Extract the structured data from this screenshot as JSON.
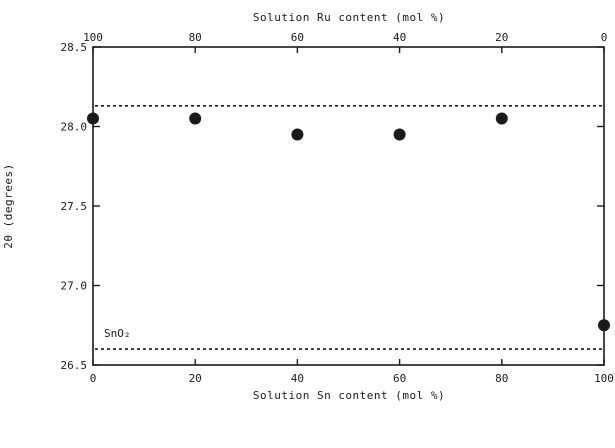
{
  "chart_data": {
    "type": "scatter",
    "title": "",
    "xlabel": "Solution Sn content (mol %)",
    "ylabel": "2θ (degrees)",
    "x2label": "Solution Ru content (mol %)",
    "xlim": [
      0,
      100
    ],
    "ylim": [
      26.5,
      28.5
    ],
    "x_ticks": [
      "0",
      "20",
      "40",
      "60",
      "80",
      "100"
    ],
    "x2_ticks": [
      "100",
      "80",
      "60",
      "40",
      "20",
      "0"
    ],
    "y_ticks": [
      "26.5",
      "27.0",
      "27.5",
      "28.0",
      "28.5"
    ],
    "grid": false,
    "series": [
      {
        "x": [
          0,
          20,
          40,
          60,
          80,
          100
        ],
        "y": [
          28.05,
          28.05,
          27.95,
          27.95,
          28.05,
          26.75
        ]
      }
    ],
    "reference_lines": [
      {
        "y": 28.13,
        "label": ""
      },
      {
        "y": 26.6,
        "label": "SnO₂"
      }
    ]
  }
}
